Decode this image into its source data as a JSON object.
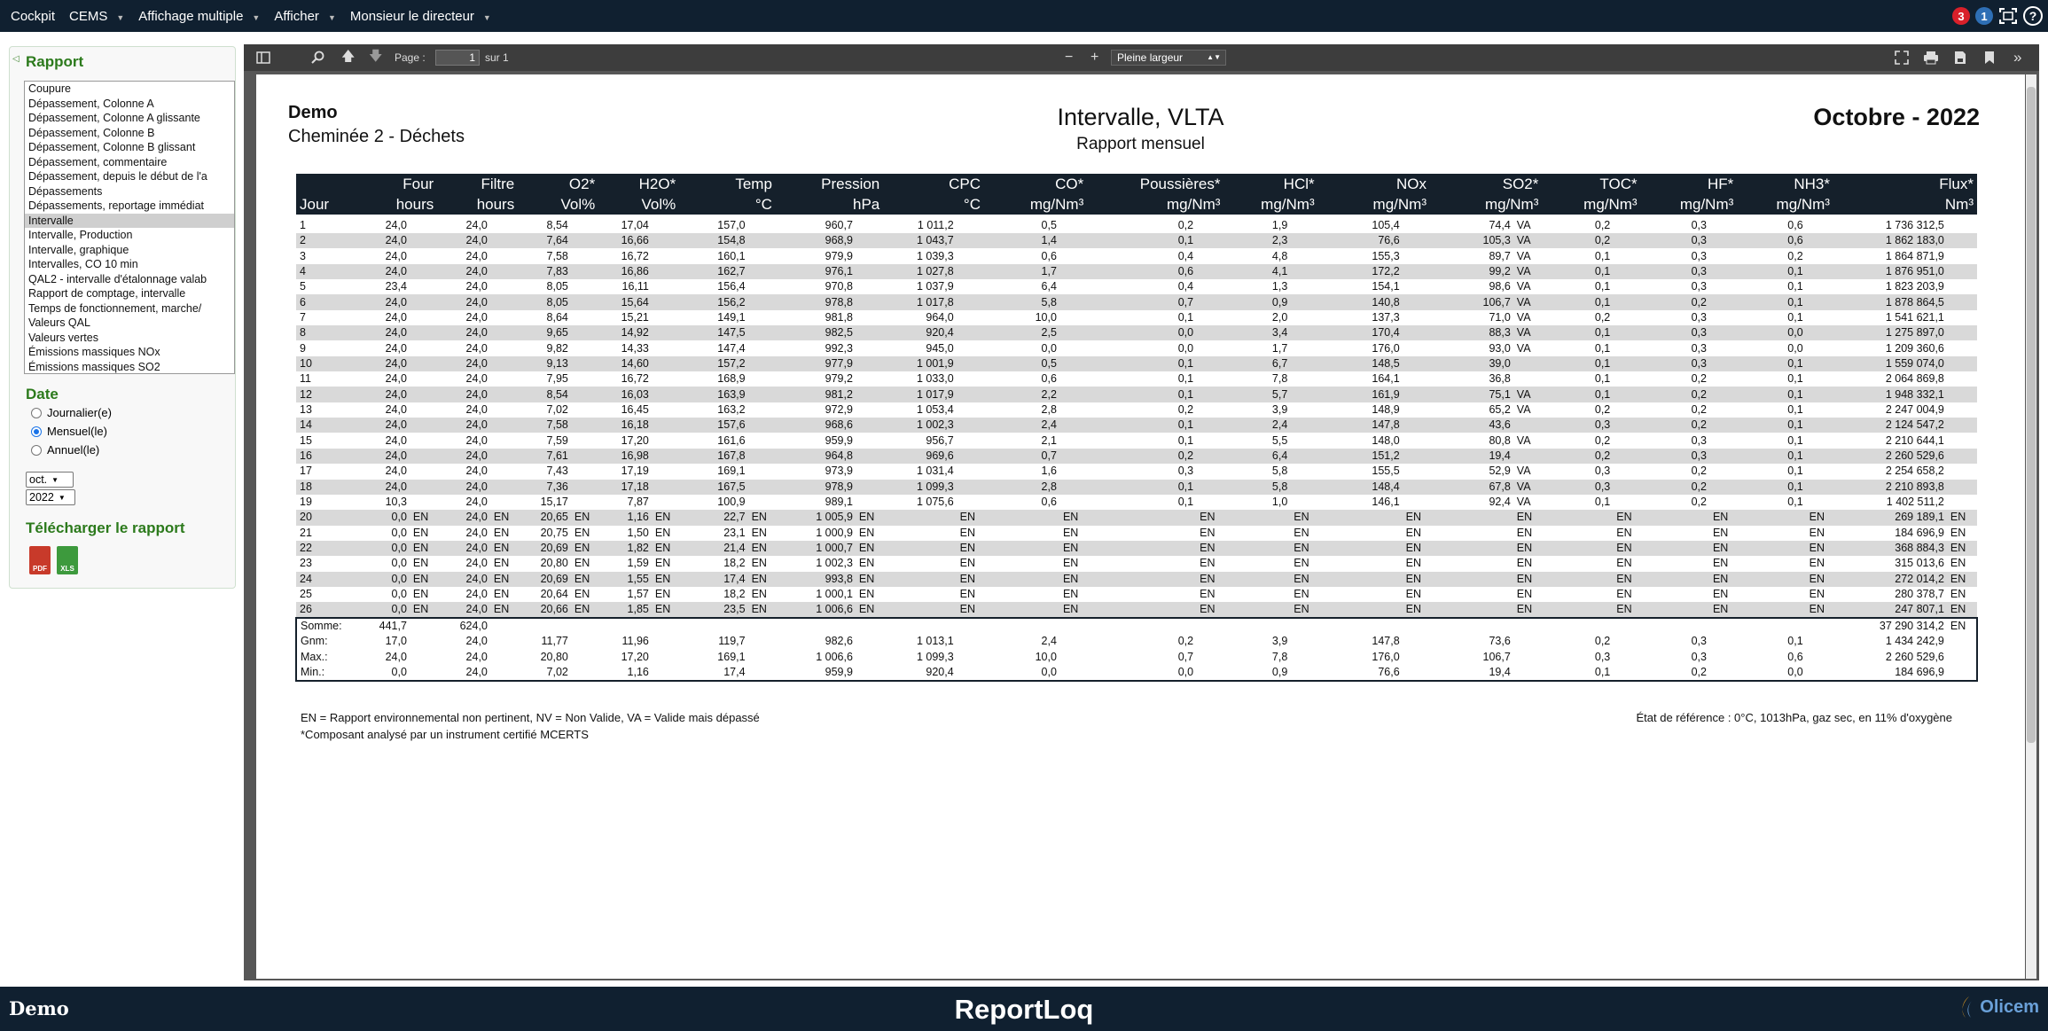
{
  "topnav": {
    "menu": [
      {
        "label": "Cockpit",
        "caret": false
      },
      {
        "label": "CEMS",
        "caret": true
      },
      {
        "label": "Affichage multiple",
        "caret": true
      },
      {
        "label": "Afficher",
        "caret": true
      },
      {
        "label": "Monsieur le directeur",
        "caret": true
      }
    ],
    "badge_red": "3",
    "badge_blue": "1",
    "help": "?"
  },
  "sidebar": {
    "rapport_title": "Rapport",
    "report_list": [
      "Coupure",
      "Dépassement, Colonne A",
      "Dépassement, Colonne A glissante",
      "Dépassement, Colonne B",
      "Dépassement, Colonne B glissant",
      "Dépassement, commentaire",
      "Dépassement, depuis le début de l'a",
      "Dépassements",
      "Dépassements, reportage immédiat",
      "Intervalle",
      "Intervalle, Production",
      "Intervalle, graphique",
      "Intervalles, CO 10 min",
      "QAL2 - intervalle d'étalonnage valab",
      "Rapport de comptage, intervalle",
      "Temps de fonctionnement, marche/",
      "Valeurs QAL",
      "Valeurs vertes",
      "Émissions massiques NOx",
      "Émissions massiques SO2"
    ],
    "selected_report": "Intervalle",
    "date_title": "Date",
    "radios": [
      {
        "label": "Journalier(e)",
        "checked": false
      },
      {
        "label": "Mensuel(le)",
        "checked": true
      },
      {
        "label": "Annuel(le)",
        "checked": false
      }
    ],
    "month_value": "oct.",
    "year_value": "2022",
    "download_title": "Télécharger le rapport",
    "pdf_label": "PDF",
    "xls_label": "XLS"
  },
  "viewer": {
    "page_label": "Page :",
    "page_value": "1",
    "page_total": "sur 1",
    "zoom_minus": "−",
    "zoom_plus": "+",
    "zoom_value": "Pleine largeur",
    "more": "»"
  },
  "report": {
    "company": "Demo",
    "site": "Cheminée 2 - Déchets",
    "title": "Intervalle, VLTA",
    "subtitle": "Rapport mensuel",
    "period": "Octobre - 2022",
    "columns": [
      {
        "name": "",
        "unit": "Jour"
      },
      {
        "name": "Four",
        "unit": "hours"
      },
      {
        "name": "Filtre",
        "unit": "hours"
      },
      {
        "name": "O2*",
        "unit": "Vol%"
      },
      {
        "name": "H2O*",
        "unit": "Vol%"
      },
      {
        "name": "Temp",
        "unit": "°C"
      },
      {
        "name": "Pression",
        "unit": "hPa"
      },
      {
        "name": "CPC",
        "unit": "°C"
      },
      {
        "name": "CO*",
        "unit": "mg/Nm³"
      },
      {
        "name": "Poussières*",
        "unit": "mg/Nm³"
      },
      {
        "name": "HCl*",
        "unit": "mg/Nm³"
      },
      {
        "name": "NOx",
        "unit": "mg/Nm³"
      },
      {
        "name": "SO2*",
        "unit": "mg/Nm³"
      },
      {
        "name": "TOC*",
        "unit": "mg/Nm³"
      },
      {
        "name": "HF*",
        "unit": "mg/Nm³"
      },
      {
        "name": "NH3*",
        "unit": "mg/Nm³"
      },
      {
        "name": "Flux*",
        "unit": "Nm³"
      }
    ],
    "rows": [
      [
        "1",
        "24,0",
        "",
        "24,0",
        "",
        "8,54",
        "",
        "17,04",
        "",
        "157,0",
        "",
        "960,7",
        "",
        "1 011,2",
        "",
        "0,5",
        "",
        "0,2",
        "",
        "1,9",
        "",
        "105,4",
        "",
        "74,4",
        "VA",
        "0,2",
        "",
        "0,3",
        "",
        "0,6",
        "",
        "1 736 312,5",
        ""
      ],
      [
        "2",
        "24,0",
        "",
        "24,0",
        "",
        "7,64",
        "",
        "16,66",
        "",
        "154,8",
        "",
        "968,9",
        "",
        "1 043,7",
        "",
        "1,4",
        "",
        "0,1",
        "",
        "2,3",
        "",
        "76,6",
        "",
        "105,3",
        "VA",
        "0,2",
        "",
        "0,3",
        "",
        "0,6",
        "",
        "1 862 183,0",
        ""
      ],
      [
        "3",
        "24,0",
        "",
        "24,0",
        "",
        "7,58",
        "",
        "16,72",
        "",
        "160,1",
        "",
        "979,9",
        "",
        "1 039,3",
        "",
        "0,6",
        "",
        "0,4",
        "",
        "4,8",
        "",
        "155,3",
        "",
        "89,7",
        "VA",
        "0,1",
        "",
        "0,3",
        "",
        "0,2",
        "",
        "1 864 871,9",
        ""
      ],
      [
        "4",
        "24,0",
        "",
        "24,0",
        "",
        "7,83",
        "",
        "16,86",
        "",
        "162,7",
        "",
        "976,1",
        "",
        "1 027,8",
        "",
        "1,7",
        "",
        "0,6",
        "",
        "4,1",
        "",
        "172,2",
        "",
        "99,2",
        "VA",
        "0,1",
        "",
        "0,3",
        "",
        "0,1",
        "",
        "1 876 951,0",
        ""
      ],
      [
        "5",
        "23,4",
        "",
        "24,0",
        "",
        "8,05",
        "",
        "16,11",
        "",
        "156,4",
        "",
        "970,8",
        "",
        "1 037,9",
        "",
        "6,4",
        "",
        "0,4",
        "",
        "1,3",
        "",
        "154,1",
        "",
        "98,6",
        "VA",
        "0,1",
        "",
        "0,3",
        "",
        "0,1",
        "",
        "1 823 203,9",
        ""
      ],
      [
        "6",
        "24,0",
        "",
        "24,0",
        "",
        "8,05",
        "",
        "15,64",
        "",
        "156,2",
        "",
        "978,8",
        "",
        "1 017,8",
        "",
        "5,8",
        "",
        "0,7",
        "",
        "0,9",
        "",
        "140,8",
        "",
        "106,7",
        "VA",
        "0,1",
        "",
        "0,2",
        "",
        "0,1",
        "",
        "1 878 864,5",
        ""
      ],
      [
        "7",
        "24,0",
        "",
        "24,0",
        "",
        "8,64",
        "",
        "15,21",
        "",
        "149,1",
        "",
        "981,8",
        "",
        "964,0",
        "",
        "10,0",
        "",
        "0,1",
        "",
        "2,0",
        "",
        "137,3",
        "",
        "71,0",
        "VA",
        "0,2",
        "",
        "0,3",
        "",
        "0,1",
        "",
        "1 541 621,1",
        ""
      ],
      [
        "8",
        "24,0",
        "",
        "24,0",
        "",
        "9,65",
        "",
        "14,92",
        "",
        "147,5",
        "",
        "982,5",
        "",
        "920,4",
        "",
        "2,5",
        "",
        "0,0",
        "",
        "3,4",
        "",
        "170,4",
        "",
        "88,3",
        "VA",
        "0,1",
        "",
        "0,3",
        "",
        "0,0",
        "",
        "1 275 897,0",
        ""
      ],
      [
        "9",
        "24,0",
        "",
        "24,0",
        "",
        "9,82",
        "",
        "14,33",
        "",
        "147,4",
        "",
        "992,3",
        "",
        "945,0",
        "",
        "0,0",
        "",
        "0,0",
        "",
        "1,7",
        "",
        "176,0",
        "",
        "93,0",
        "VA",
        "0,1",
        "",
        "0,3",
        "",
        "0,0",
        "",
        "1 209 360,6",
        ""
      ],
      [
        "10",
        "24,0",
        "",
        "24,0",
        "",
        "9,13",
        "",
        "14,60",
        "",
        "157,2",
        "",
        "977,9",
        "",
        "1 001,9",
        "",
        "0,5",
        "",
        "0,1",
        "",
        "6,7",
        "",
        "148,5",
        "",
        "39,0",
        "",
        "0,1",
        "",
        "0,3",
        "",
        "0,1",
        "",
        "1 559 074,0",
        ""
      ],
      [
        "11",
        "24,0",
        "",
        "24,0",
        "",
        "7,95",
        "",
        "16,72",
        "",
        "168,9",
        "",
        "979,2",
        "",
        "1 033,0",
        "",
        "0,6",
        "",
        "0,1",
        "",
        "7,8",
        "",
        "164,1",
        "",
        "36,8",
        "",
        "0,1",
        "",
        "0,2",
        "",
        "0,1",
        "",
        "2 064 869,8",
        ""
      ],
      [
        "12",
        "24,0",
        "",
        "24,0",
        "",
        "8,54",
        "",
        "16,03",
        "",
        "163,9",
        "",
        "981,2",
        "",
        "1 017,9",
        "",
        "2,2",
        "",
        "0,1",
        "",
        "5,7",
        "",
        "161,9",
        "",
        "75,1",
        "VA",
        "0,1",
        "",
        "0,2",
        "",
        "0,1",
        "",
        "1 948 332,1",
        ""
      ],
      [
        "13",
        "24,0",
        "",
        "24,0",
        "",
        "7,02",
        "",
        "16,45",
        "",
        "163,2",
        "",
        "972,9",
        "",
        "1 053,4",
        "",
        "2,8",
        "",
        "0,2",
        "",
        "3,9",
        "",
        "148,9",
        "",
        "65,2",
        "VA",
        "0,2",
        "",
        "0,2",
        "",
        "0,1",
        "",
        "2 247 004,9",
        ""
      ],
      [
        "14",
        "24,0",
        "",
        "24,0",
        "",
        "7,58",
        "",
        "16,18",
        "",
        "157,6",
        "",
        "968,6",
        "",
        "1 002,3",
        "",
        "2,4",
        "",
        "0,1",
        "",
        "2,4",
        "",
        "147,8",
        "",
        "43,6",
        "",
        "0,3",
        "",
        "0,2",
        "",
        "0,1",
        "",
        "2 124 547,2",
        ""
      ],
      [
        "15",
        "24,0",
        "",
        "24,0",
        "",
        "7,59",
        "",
        "17,20",
        "",
        "161,6",
        "",
        "959,9",
        "",
        "956,7",
        "",
        "2,1",
        "",
        "0,1",
        "",
        "5,5",
        "",
        "148,0",
        "",
        "80,8",
        "VA",
        "0,2",
        "",
        "0,3",
        "",
        "0,1",
        "",
        "2 210 644,1",
        ""
      ],
      [
        "16",
        "24,0",
        "",
        "24,0",
        "",
        "7,61",
        "",
        "16,98",
        "",
        "167,8",
        "",
        "964,8",
        "",
        "969,6",
        "",
        "0,7",
        "",
        "0,2",
        "",
        "6,4",
        "",
        "151,2",
        "",
        "19,4",
        "",
        "0,2",
        "",
        "0,3",
        "",
        "0,1",
        "",
        "2 260 529,6",
        ""
      ],
      [
        "17",
        "24,0",
        "",
        "24,0",
        "",
        "7,43",
        "",
        "17,19",
        "",
        "169,1",
        "",
        "973,9",
        "",
        "1 031,4",
        "",
        "1,6",
        "",
        "0,3",
        "",
        "5,8",
        "",
        "155,5",
        "",
        "52,9",
        "VA",
        "0,3",
        "",
        "0,2",
        "",
        "0,1",
        "",
        "2 254 658,2",
        ""
      ],
      [
        "18",
        "24,0",
        "",
        "24,0",
        "",
        "7,36",
        "",
        "17,18",
        "",
        "167,5",
        "",
        "978,9",
        "",
        "1 099,3",
        "",
        "2,8",
        "",
        "0,1",
        "",
        "5,8",
        "",
        "148,4",
        "",
        "67,8",
        "VA",
        "0,3",
        "",
        "0,2",
        "",
        "0,1",
        "",
        "2 210 893,8",
        ""
      ],
      [
        "19",
        "10,3",
        "",
        "24,0",
        "",
        "15,17",
        "",
        "7,87",
        "",
        "100,9",
        "",
        "989,1",
        "",
        "1 075,6",
        "",
        "0,6",
        "",
        "0,1",
        "",
        "1,0",
        "",
        "146,1",
        "",
        "92,4",
        "VA",
        "0,1",
        "",
        "0,2",
        "",
        "0,1",
        "",
        "1 402 511,2",
        ""
      ],
      [
        "20",
        "0,0",
        "EN",
        "24,0",
        "EN",
        "20,65",
        "EN",
        "1,16",
        "EN",
        "22,7",
        "EN",
        "1 005,9",
        "EN",
        "",
        "EN",
        "",
        "EN",
        "",
        "EN",
        "",
        "EN",
        "",
        "EN",
        "",
        "EN",
        "",
        "EN",
        "",
        "EN",
        "",
        "EN",
        "269 189,1",
        "EN"
      ],
      [
        "21",
        "0,0",
        "EN",
        "24,0",
        "EN",
        "20,75",
        "EN",
        "1,50",
        "EN",
        "23,1",
        "EN",
        "1 000,9",
        "EN",
        "",
        "EN",
        "",
        "EN",
        "",
        "EN",
        "",
        "EN",
        "",
        "EN",
        "",
        "EN",
        "",
        "EN",
        "",
        "EN",
        "",
        "EN",
        "184 696,9",
        "EN"
      ],
      [
        "22",
        "0,0",
        "EN",
        "24,0",
        "EN",
        "20,69",
        "EN",
        "1,82",
        "EN",
        "21,4",
        "EN",
        "1 000,7",
        "EN",
        "",
        "EN",
        "",
        "EN",
        "",
        "EN",
        "",
        "EN",
        "",
        "EN",
        "",
        "EN",
        "",
        "EN",
        "",
        "EN",
        "",
        "EN",
        "368 884,3",
        "EN"
      ],
      [
        "23",
        "0,0",
        "EN",
        "24,0",
        "EN",
        "20,80",
        "EN",
        "1,59",
        "EN",
        "18,2",
        "EN",
        "1 002,3",
        "EN",
        "",
        "EN",
        "",
        "EN",
        "",
        "EN",
        "",
        "EN",
        "",
        "EN",
        "",
        "EN",
        "",
        "EN",
        "",
        "EN",
        "",
        "EN",
        "315 013,6",
        "EN"
      ],
      [
        "24",
        "0,0",
        "EN",
        "24,0",
        "EN",
        "20,69",
        "EN",
        "1,55",
        "EN",
        "17,4",
        "EN",
        "993,8",
        "EN",
        "",
        "EN",
        "",
        "EN",
        "",
        "EN",
        "",
        "EN",
        "",
        "EN",
        "",
        "EN",
        "",
        "EN",
        "",
        "EN",
        "",
        "EN",
        "272 014,2",
        "EN"
      ],
      [
        "25",
        "0,0",
        "EN",
        "24,0",
        "EN",
        "20,64",
        "EN",
        "1,57",
        "EN",
        "18,2",
        "EN",
        "1 000,1",
        "EN",
        "",
        "EN",
        "",
        "EN",
        "",
        "EN",
        "",
        "EN",
        "",
        "EN",
        "",
        "EN",
        "",
        "EN",
        "",
        "EN",
        "",
        "EN",
        "280 378,7",
        "EN"
      ],
      [
        "26",
        "0,0",
        "EN",
        "24,0",
        "EN",
        "20,66",
        "EN",
        "1,85",
        "EN",
        "23,5",
        "EN",
        "1 006,6",
        "EN",
        "",
        "EN",
        "",
        "EN",
        "",
        "EN",
        "",
        "EN",
        "",
        "EN",
        "",
        "EN",
        "",
        "EN",
        "",
        "EN",
        "",
        "EN",
        "247 807,1",
        "EN"
      ]
    ],
    "summary": [
      [
        "Somme:",
        "441,7",
        "",
        "624,0",
        "",
        "",
        "",
        "",
        "",
        "",
        "",
        "",
        "",
        "",
        "",
        "",
        "",
        "",
        "",
        "",
        "",
        "",
        "",
        "",
        "",
        "",
        "",
        "",
        "",
        "",
        "",
        "37 290 314,2",
        "EN"
      ],
      [
        "Gnm:",
        "17,0",
        "",
        "24,0",
        "",
        "11,77",
        "",
        "11,96",
        "",
        "119,7",
        "",
        "982,6",
        "",
        "1 013,1",
        "",
        "2,4",
        "",
        "0,2",
        "",
        "3,9",
        "",
        "147,8",
        "",
        "73,6",
        "",
        "0,2",
        "",
        "0,3",
        "",
        "0,1",
        "",
        "1 434 242,9",
        ""
      ],
      [
        "Max.:",
        "24,0",
        "",
        "24,0",
        "",
        "20,80",
        "",
        "17,20",
        "",
        "169,1",
        "",
        "1 006,6",
        "",
        "1 099,3",
        "",
        "10,0",
        "",
        "0,7",
        "",
        "7,8",
        "",
        "176,0",
        "",
        "106,7",
        "",
        "0,3",
        "",
        "0,3",
        "",
        "0,6",
        "",
        "2 260 529,6",
        ""
      ],
      [
        "Min.:",
        "0,0",
        "",
        "24,0",
        "",
        "7,02",
        "",
        "1,16",
        "",
        "17,4",
        "",
        "959,9",
        "",
        "920,4",
        "",
        "0,0",
        "",
        "0,0",
        "",
        "0,9",
        "",
        "76,6",
        "",
        "19,4",
        "",
        "0,1",
        "",
        "0,2",
        "",
        "0,0",
        "",
        "184 696,9",
        ""
      ]
    ],
    "note_legend": "EN = Rapport environnemental non pertinent, NV = Non Valide, VA = Valide mais dépassé",
    "note_reference": "État de référence : 0°C, 1013hPa, gaz sec, en 11% d'oxygène",
    "note_certified": "*Composant analysé par un instrument certifié MCERTS"
  },
  "footer": {
    "left": "Demo",
    "center": "ReportLoq",
    "right": "Olicem"
  }
}
